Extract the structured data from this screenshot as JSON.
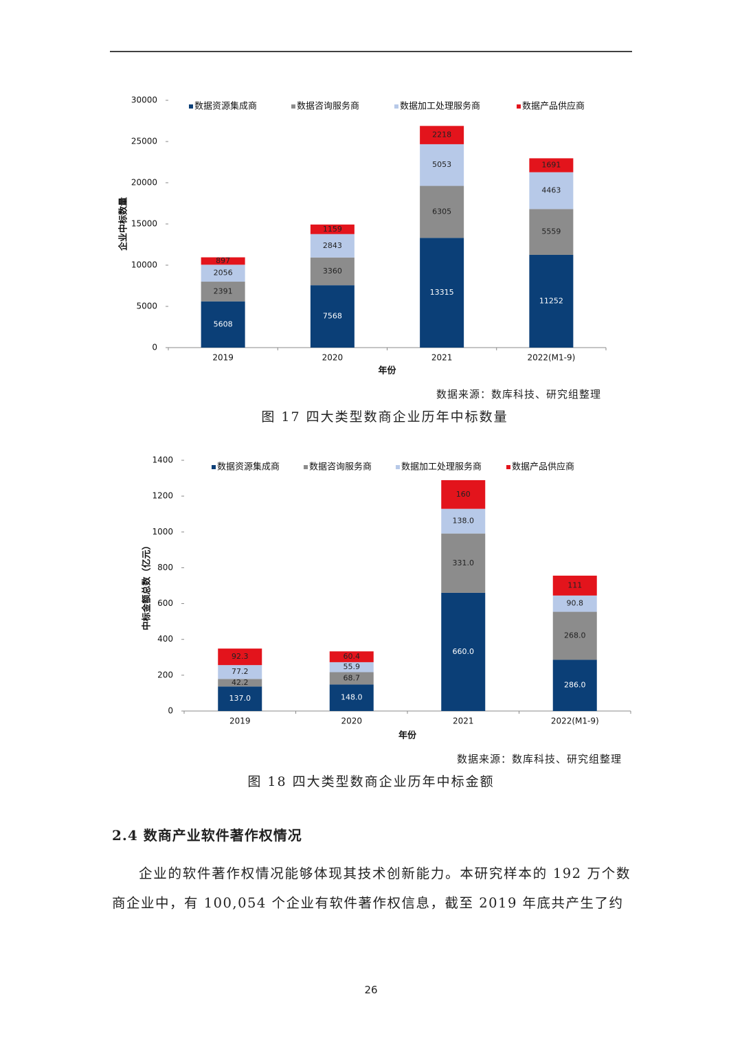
{
  "chart_data": [
    {
      "type": "bar",
      "stacked": true,
      "x_label": "年份",
      "y_label": "企业中标数量",
      "categories": [
        "2019",
        "2020",
        "2021",
        "2022(M1-9)"
      ],
      "series": [
        {
          "name": "数据资源集成商",
          "color": "#0b3f77",
          "values": [
            5608,
            7568,
            13315,
            11252
          ]
        },
        {
          "name": "数据咨询服务商",
          "color": "#8c8c8c",
          "values": [
            2391,
            3360,
            6305,
            5559
          ]
        },
        {
          "name": "数据加工处理服务商",
          "color": "#b7c9e8",
          "values": [
            2056,
            2843,
            5053,
            4463
          ]
        },
        {
          "name": "数据产品供应商",
          "color": "#e3141c",
          "values": [
            897,
            1159,
            2218,
            1691
          ]
        }
      ],
      "ylim": [
        0,
        30000
      ],
      "yticks": [
        0,
        5000,
        10000,
        15000,
        20000,
        25000,
        30000
      ],
      "legend": "top",
      "source": "数据来源：数库科技、研究组整理",
      "caption": "图 17  四大类型数商企业历年中标数量"
    },
    {
      "type": "bar",
      "stacked": true,
      "x_label": "年份",
      "y_label": "中标金额总数（亿元）",
      "categories": [
        "2019",
        "2020",
        "2021",
        "2022(M1-9)"
      ],
      "series": [
        {
          "name": "数据资源集成商",
          "color": "#0b3f77",
          "values": [
            137,
            148,
            660,
            286
          ],
          "value_labels": [
            "137.0",
            "148.0",
            "660.0",
            "286.0"
          ]
        },
        {
          "name": "数据咨询服务商",
          "color": "#8c8c8c",
          "values": [
            42.2,
            68.7,
            331,
            268
          ],
          "value_labels": [
            "42.2",
            "68.7",
            "331.0",
            "268.0"
          ]
        },
        {
          "name": "数据加工处理服务商",
          "color": "#b7c9e8",
          "values": [
            77.2,
            55.9,
            138,
            90.8
          ],
          "value_labels": [
            "77.2",
            "55.9",
            "138.0",
            "90.8"
          ]
        },
        {
          "name": "数据产品供应商",
          "color": "#e3141c",
          "values": [
            92.3,
            60.4,
            160,
            111
          ]
        }
      ],
      "ylim": [
        0,
        1400
      ],
      "yticks": [
        0,
        200,
        400,
        600,
        800,
        1000,
        1200,
        1400
      ],
      "legend": "top",
      "source": "数据来源：数库科技、研究组整理",
      "caption": "图 18  四大类型数商企业历年中标金额"
    }
  ],
  "section": {
    "heading": "2.4  数商产业软件著作权情况",
    "paragraph": "企业的软件著作权情况能够体现其技术创新能力。本研究样本的 192 万个数商企业中，有 100,054 个企业有软件著作权信息，截至 2019 年底共产生了约"
  },
  "page_number": "26"
}
